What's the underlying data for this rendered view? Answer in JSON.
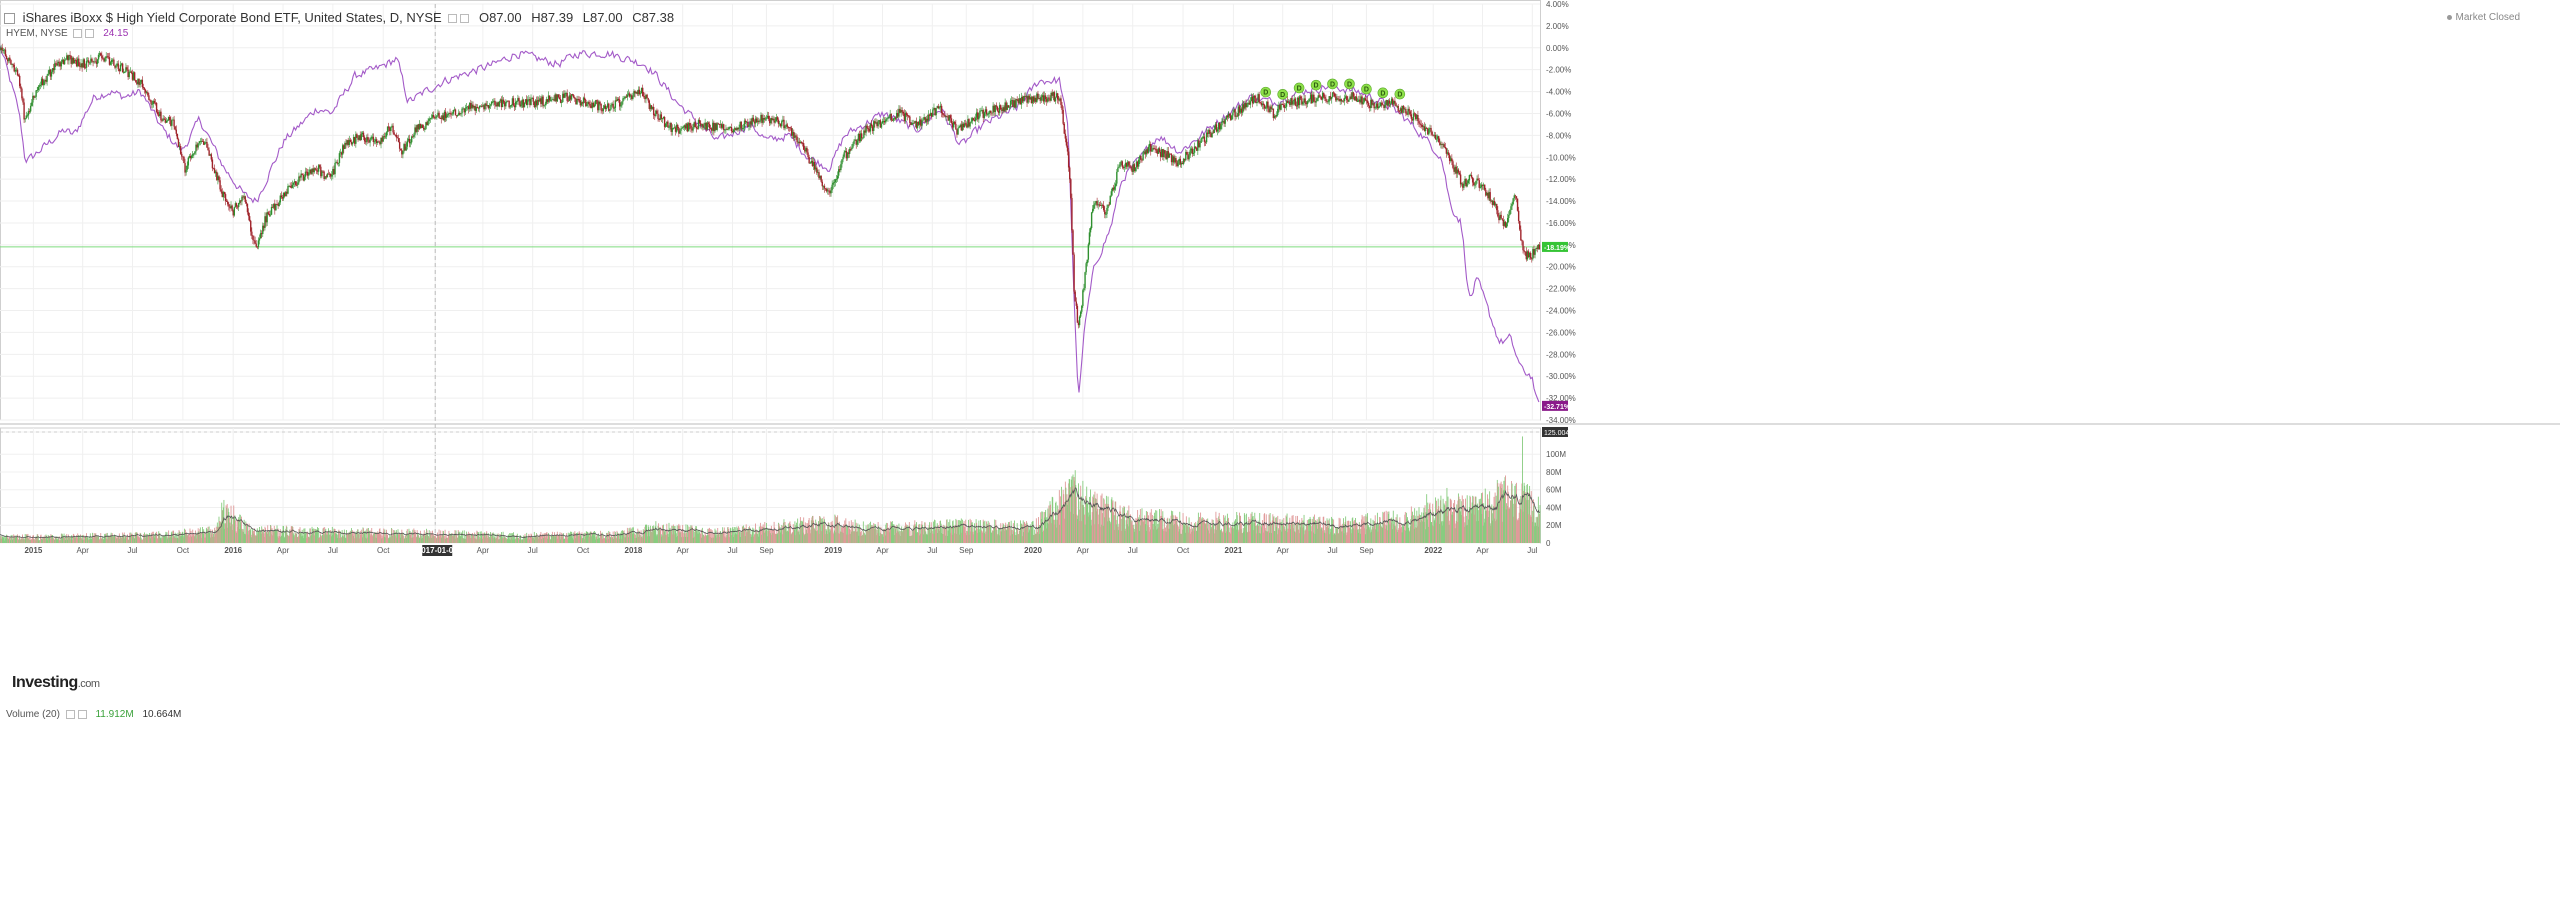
{
  "header": {
    "title": "iShares iBoxx $ High Yield Corporate Bond ETF, United States, D, NYSE",
    "open": "O87.00",
    "high": "H87.39",
    "low": "L87.00",
    "close": "C87.38",
    "compare_symbol": "HYEM, NYSE",
    "compare_value": "24.15",
    "market_status": "Market Closed",
    "logo_main": "Investing",
    "logo_suffix": ".com",
    "volume_label": "Volume (20)",
    "volume_value": "11.912M",
    "volume_ma_value": "10.664M"
  },
  "colors": {
    "up": "#2f8f2f",
    "down": "#a0232a",
    "compare": "#a35ac8",
    "hline": "#7fdc7f",
    "badge_up": "#35c435",
    "badge_cmp": "#8a1a8a",
    "dividend": "#8ee04a"
  },
  "chart_data": [
    {
      "type": "line",
      "name": "price-comparison",
      "title": "iShares iBoxx $ High Yield Corporate Bond ETF, United States, D, NYSE",
      "y_scale": "percent change",
      "ylim": [
        -34,
        4
      ],
      "yticks": [
        "4.00%",
        "2.00%",
        "0.00%",
        "-2.00%",
        "-4.00%",
        "-6.00%",
        "-8.00%",
        "-10.00%",
        "-12.00%",
        "-14.00%",
        "-16.00%",
        "-18.00%",
        "-20.00%",
        "-22.00%",
        "-24.00%",
        "-26.00%",
        "-28.00%",
        "-30.00%",
        "-32.00%",
        "-34.00%"
      ],
      "x_range": [
        "2014-11-01",
        "2022-07-15"
      ],
      "xticks": [
        {
          "label": "2015",
          "date": "2015-01-01"
        },
        {
          "label": "Apr",
          "date": "2015-04-01"
        },
        {
          "label": "Jul",
          "date": "2015-07-01"
        },
        {
          "label": "Oct",
          "date": "2015-10-01"
        },
        {
          "label": "2016",
          "date": "2016-01-01"
        },
        {
          "label": "Apr",
          "date": "2016-04-01"
        },
        {
          "label": "Jul",
          "date": "2016-07-01"
        },
        {
          "label": "Oct",
          "date": "2016-10-01"
        },
        {
          "label": "2017-01-04",
          "date": "2017-01-04",
          "highlight": true
        },
        {
          "label": "Apr",
          "date": "2017-04-01"
        },
        {
          "label": "Jul",
          "date": "2017-07-01"
        },
        {
          "label": "Oct",
          "date": "2017-10-01"
        },
        {
          "label": "2018",
          "date": "2018-01-01"
        },
        {
          "label": "Apr",
          "date": "2018-04-01"
        },
        {
          "label": "Jul",
          "date": "2018-07-01"
        },
        {
          "label": "Sep",
          "date": "2018-09-01"
        },
        {
          "label": "2019",
          "date": "2019-01-01"
        },
        {
          "label": "Apr",
          "date": "2019-04-01"
        },
        {
          "label": "Jul",
          "date": "2019-07-01"
        },
        {
          "label": "Sep",
          "date": "2019-09-01"
        },
        {
          "label": "2020",
          "date": "2020-01-01"
        },
        {
          "label": "Apr",
          "date": "2020-04-01"
        },
        {
          "label": "Jul",
          "date": "2020-07-01"
        },
        {
          "label": "Oct",
          "date": "2020-10-01"
        },
        {
          "label": "2021",
          "date": "2021-01-01"
        },
        {
          "label": "Apr",
          "date": "2021-04-01"
        },
        {
          "label": "Jul",
          "date": "2021-07-01"
        },
        {
          "label": "Sep",
          "date": "2021-09-01"
        },
        {
          "label": "2022",
          "date": "2022-01-01"
        },
        {
          "label": "Apr",
          "date": "2022-04-01"
        },
        {
          "label": "Jul",
          "date": "2022-07-01"
        }
      ],
      "series": [
        {
          "name": "iShares iBoxx $ High Yield Corporate Bond ETF",
          "style": "candlestick",
          "points": [
            [
              "2014-11-01",
              0.0
            ],
            [
              "2014-12-05",
              -2.5
            ],
            [
              "2014-12-16",
              -6.5
            ],
            [
              "2015-01-10",
              -3.5
            ],
            [
              "2015-02-15",
              -1.5
            ],
            [
              "2015-03-05",
              -1.0
            ],
            [
              "2015-04-01",
              -1.5
            ],
            [
              "2015-05-10",
              -0.8
            ],
            [
              "2015-06-01",
              -1.5
            ],
            [
              "2015-07-01",
              -2.5
            ],
            [
              "2015-07-20",
              -3.5
            ],
            [
              "2015-08-25",
              -6.5
            ],
            [
              "2015-09-15",
              -7.0
            ],
            [
              "2015-10-05",
              -11.0
            ],
            [
              "2015-11-05",
              -8.0
            ],
            [
              "2015-12-14",
              -13.5
            ],
            [
              "2015-12-31",
              -15.0
            ],
            [
              "2016-01-20",
              -13.5
            ],
            [
              "2016-02-11",
              -18.5
            ],
            [
              "2016-03-01",
              -15.5
            ],
            [
              "2016-04-15",
              -12.5
            ],
            [
              "2016-06-01",
              -11.0
            ],
            [
              "2016-06-27",
              -12.0
            ],
            [
              "2016-07-20",
              -9.0
            ],
            [
              "2016-08-20",
              -8.0
            ],
            [
              "2016-09-25",
              -8.5
            ],
            [
              "2016-10-15",
              -7.2
            ],
            [
              "2016-11-04",
              -9.5
            ],
            [
              "2016-12-01",
              -7.5
            ],
            [
              "2017-01-01",
              -6.5
            ],
            [
              "2017-03-01",
              -5.5
            ],
            [
              "2017-05-01",
              -5.0
            ],
            [
              "2017-07-01",
              -5.0
            ],
            [
              "2017-09-01",
              -4.5
            ],
            [
              "2017-11-15",
              -5.5
            ],
            [
              "2018-01-15",
              -4.0
            ],
            [
              "2018-02-10",
              -6.0
            ],
            [
              "2018-03-15",
              -7.5
            ],
            [
              "2018-05-01",
              -7.0
            ],
            [
              "2018-06-20",
              -7.5
            ],
            [
              "2018-08-15",
              -6.5
            ],
            [
              "2018-09-20",
              -6.5
            ],
            [
              "2018-11-01",
              -8.5
            ],
            [
              "2018-12-24",
              -13.5
            ],
            [
              "2019-01-20",
              -10.0
            ],
            [
              "2019-03-01",
              -7.5
            ],
            [
              "2019-05-01",
              -6.0
            ],
            [
              "2019-06-01",
              -7.0
            ],
            [
              "2019-07-15",
              -5.5
            ],
            [
              "2019-08-15",
              -7.5
            ],
            [
              "2019-10-01",
              -6.0
            ],
            [
              "2019-12-01",
              -5.0
            ],
            [
              "2020-01-15",
              -4.5
            ],
            [
              "2020-02-20",
              -4.5
            ],
            [
              "2020-03-09",
              -12.0
            ],
            [
              "2020-03-16",
              -22.0
            ],
            [
              "2020-03-23",
              -25.5
            ],
            [
              "2020-04-01",
              -22.5
            ],
            [
              "2020-04-20",
              -14.0
            ],
            [
              "2020-05-15",
              -15.0
            ],
            [
              "2020-06-08",
              -10.5
            ],
            [
              "2020-07-01",
              -11.0
            ],
            [
              "2020-08-01",
              -9.0
            ],
            [
              "2020-09-25",
              -10.5
            ],
            [
              "2020-11-15",
              -8.0
            ],
            [
              "2020-12-20",
              -6.5
            ],
            [
              "2021-02-15",
              -4.5
            ],
            [
              "2021-03-15",
              -6.0
            ],
            [
              "2021-04-15",
              -5.0
            ],
            [
              "2021-06-15",
              -4.5
            ],
            [
              "2021-08-15",
              -4.5
            ],
            [
              "2021-09-20",
              -5.5
            ],
            [
              "2021-10-20",
              -5.0
            ],
            [
              "2021-12-01",
              -6.5
            ],
            [
              "2022-01-20",
              -9.0
            ],
            [
              "2022-02-24",
              -12.5
            ],
            [
              "2022-03-10",
              -12.0
            ],
            [
              "2022-03-30",
              -12.5
            ],
            [
              "2022-04-20",
              -14.0
            ],
            [
              "2022-05-10",
              -16.5
            ],
            [
              "2022-05-30",
              -13.0
            ],
            [
              "2022-06-15",
              -19.0
            ],
            [
              "2022-06-30",
              -19.0
            ],
            [
              "2022-07-08",
              -18.2
            ]
          ]
        },
        {
          "name": "HYEM, NYSE",
          "style": "line",
          "points": [
            [
              "2014-11-01",
              0.0
            ],
            [
              "2014-12-05",
              -6.0
            ],
            [
              "2014-12-16",
              -10.5
            ],
            [
              "2015-01-20",
              -9.0
            ],
            [
              "2015-02-25",
              -7.5
            ],
            [
              "2015-03-15",
              -8.0
            ],
            [
              "2015-04-20",
              -4.5
            ],
            [
              "2015-05-20",
              -4.0
            ],
            [
              "2015-06-15",
              -4.5
            ],
            [
              "2015-07-15",
              -4.0
            ],
            [
              "2015-08-24",
              -7.5
            ],
            [
              "2015-09-28",
              -9.5
            ],
            [
              "2015-10-30",
              -6.5
            ],
            [
              "2015-12-14",
              -11.0
            ],
            [
              "2016-01-20",
              -13.5
            ],
            [
              "2016-02-11",
              -14.0
            ],
            [
              "2016-04-01",
              -8.5
            ],
            [
              "2016-06-01",
              -5.5
            ],
            [
              "2016-06-27",
              -6.0
            ],
            [
              "2016-08-10",
              -2.5
            ],
            [
              "2016-09-15",
              -2.0
            ],
            [
              "2016-10-25",
              -1.0
            ],
            [
              "2016-11-14",
              -5.0
            ],
            [
              "2016-12-15",
              -4.0
            ],
            [
              "2017-01-20",
              -3.0
            ],
            [
              "2017-04-20",
              -1.5
            ],
            [
              "2017-06-01",
              -0.5
            ],
            [
              "2017-08-15",
              -1.5
            ],
            [
              "2017-09-20",
              -0.5
            ],
            [
              "2017-11-15",
              -0.5
            ],
            [
              "2018-01-20",
              -1.5
            ],
            [
              "2018-02-10",
              -2.5
            ],
            [
              "2018-03-20",
              -5.0
            ],
            [
              "2018-05-01",
              -7.0
            ],
            [
              "2018-06-01",
              -8.5
            ],
            [
              "2018-08-01",
              -7.0
            ],
            [
              "2018-09-01",
              -8.5
            ],
            [
              "2018-10-10",
              -8.0
            ],
            [
              "2018-11-15",
              -10.0
            ],
            [
              "2018-12-24",
              -11.0
            ],
            [
              "2019-01-20",
              -8.0
            ],
            [
              "2019-04-01",
              -6.0
            ],
            [
              "2019-06-01",
              -7.5
            ],
            [
              "2019-07-15",
              -5.5
            ],
            [
              "2019-08-20",
              -9.0
            ],
            [
              "2019-10-01",
              -7.0
            ],
            [
              "2019-12-01",
              -5.5
            ],
            [
              "2020-01-10",
              -3.0
            ],
            [
              "2020-02-18",
              -3.0
            ],
            [
              "2020-03-05",
              -8.0
            ],
            [
              "2020-03-12",
              -20.0
            ],
            [
              "2020-03-23",
              -33.5
            ],
            [
              "2020-04-01",
              -26.0
            ],
            [
              "2020-04-20",
              -20.0
            ],
            [
              "2020-05-20",
              -16.5
            ],
            [
              "2020-06-10",
              -12.0
            ],
            [
              "2020-07-15",
              -10.0
            ],
            [
              "2020-08-15",
              -8.0
            ],
            [
              "2020-09-24",
              -9.5
            ],
            [
              "2020-11-01",
              -8.0
            ],
            [
              "2020-12-20",
              -6.0
            ],
            [
              "2021-02-01",
              -4.5
            ],
            [
              "2021-03-15",
              -5.0
            ],
            [
              "2021-05-01",
              -4.0
            ],
            [
              "2021-06-25",
              -3.5
            ],
            [
              "2021-08-15",
              -4.0
            ],
            [
              "2021-09-30",
              -5.0
            ],
            [
              "2021-10-30",
              -6.0
            ],
            [
              "2021-12-01",
              -7.5
            ],
            [
              "2022-01-15",
              -10.0
            ],
            [
              "2022-01-31",
              -14.5
            ],
            [
              "2022-02-20",
              -16.0
            ],
            [
              "2022-03-07",
              -23.5
            ],
            [
              "2022-03-20",
              -21.0
            ],
            [
              "2022-04-10",
              -24.0
            ],
            [
              "2022-05-01",
              -27.0
            ],
            [
              "2022-05-20",
              -26.5
            ],
            [
              "2022-06-10",
              -29.5
            ],
            [
              "2022-06-30",
              -30.0
            ],
            [
              "2022-07-08",
              -32.7
            ]
          ]
        }
      ],
      "horizontal_line": -18.19,
      "value_badges": [
        {
          "text": "-18.19%",
          "value": -18.19,
          "color_key": "badge_up"
        },
        {
          "text": "-32.71%",
          "value": -32.71,
          "color_key": "badge_cmp"
        }
      ],
      "dividend_markers": {
        "label": "D",
        "dates": [
          "2021-03-01",
          "2021-04-01",
          "2021-05-01",
          "2021-06-01",
          "2021-07-01",
          "2021-08-01",
          "2021-09-01",
          "2021-10-01",
          "2021-11-01"
        ]
      }
    },
    {
      "type": "bar",
      "name": "volume",
      "title": "Volume (20)",
      "ylim": [
        0,
        125
      ],
      "unit": "M",
      "yticks": [
        "0",
        "20M",
        "40M",
        "60M",
        "80M",
        "100M",
        "125.004M"
      ],
      "note": "daily volume bars (green=up, red=down) with 20-day moving average",
      "volume_profile": [
        [
          "2014-11-01",
          7
        ],
        [
          "2015-08-01",
          9
        ],
        [
          "2015-12-01",
          14
        ],
        [
          "2015-12-14",
          40
        ],
        [
          "2016-02-01",
          15
        ],
        [
          "2016-06-24",
          13
        ],
        [
          "2016-11-10",
          12
        ],
        [
          "2017-06-01",
          9
        ],
        [
          "2017-12-01",
          10
        ],
        [
          "2018-02-10",
          18
        ],
        [
          "2018-06-01",
          12
        ],
        [
          "2018-12-24",
          24
        ],
        [
          "2019-03-01",
          17
        ],
        [
          "2019-08-15",
          20
        ],
        [
          "2019-12-31",
          18
        ],
        [
          "2020-03-15",
          58
        ],
        [
          "2020-04-15",
          44
        ],
        [
          "2020-07-01",
          30
        ],
        [
          "2020-10-01",
          25
        ],
        [
          "2021-01-01",
          26
        ],
        [
          "2021-04-01",
          24
        ],
        [
          "2021-08-01",
          22
        ],
        [
          "2021-12-01",
          30
        ],
        [
          "2022-02-01",
          42
        ],
        [
          "2022-03-15",
          38
        ],
        [
          "2022-05-10",
          55
        ],
        [
          "2022-06-10",
          50
        ],
        [
          "2022-07-08",
          44
        ]
      ],
      "spikes": [
        [
          "2015-12-14",
          40
        ],
        [
          "2020-03-18",
          82
        ],
        [
          "2020-03-12",
          75
        ],
        [
          "2021-12-20",
          55
        ],
        [
          "2022-06-13",
          120
        ],
        [
          "2022-05-10",
          70
        ],
        [
          "2022-01-26",
          62
        ]
      ]
    }
  ]
}
